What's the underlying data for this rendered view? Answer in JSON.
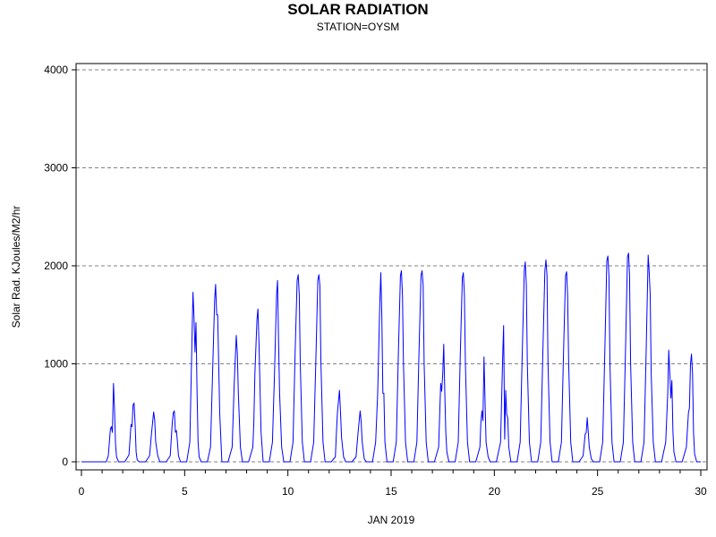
{
  "chart_data": {
    "type": "line",
    "title": "SOLAR RADIATION",
    "subtitle": "STATION=OYSM",
    "xlabel": "JAN 2019",
    "ylabel": "Solar Rad. KJoules/M2/hr",
    "xlim": [
      0,
      30
    ],
    "ylim": [
      0,
      4000
    ],
    "xticks": [
      0,
      5,
      10,
      15,
      20,
      25,
      30
    ],
    "yticks": [
      0,
      1000,
      2000,
      3000,
      4000
    ],
    "grid": "horizontal dashed",
    "colors": {
      "series": "#0000ff",
      "grid": "#808080",
      "axis": "#000000"
    },
    "series": [
      {
        "x": [
          0,
          1.2,
          1.3,
          1.4,
          1.45,
          1.5,
          1.55,
          1.6,
          1.65,
          1.7,
          1.8,
          2.1,
          2.3,
          2.4,
          2.45,
          2.5,
          2.55,
          2.6,
          2.65,
          2.7,
          2.8,
          3.1,
          3.3,
          3.4,
          3.5,
          3.55,
          3.6,
          3.7,
          3.8,
          4.1,
          4.3,
          4.4,
          4.45,
          4.5,
          4.55,
          4.6,
          4.65,
          4.7,
          4.8,
          5.1,
          5.25,
          5.35,
          5.4,
          5.45,
          5.5,
          5.55,
          5.6,
          5.65,
          5.7,
          5.8,
          6.1,
          6.25,
          6.35,
          6.45,
          6.5,
          6.55,
          6.6,
          6.7,
          6.8,
          7.1,
          7.3,
          7.4,
          7.5,
          7.55,
          7.6,
          7.7,
          7.8,
          8.1,
          8.3,
          8.35,
          8.4,
          8.5,
          8.55,
          8.6,
          8.7,
          8.8,
          9.1,
          9.25,
          9.35,
          9.45,
          9.5,
          9.55,
          9.6,
          9.7,
          9.8,
          10.1,
          10.25,
          10.35,
          10.45,
          10.5,
          10.55,
          10.6,
          10.7,
          10.8,
          11.1,
          11.25,
          11.35,
          11.45,
          11.5,
          11.55,
          11.6,
          11.7,
          11.8,
          12.1,
          12.3,
          12.35,
          12.4,
          12.5,
          12.55,
          12.6,
          12.7,
          12.8,
          13.1,
          13.3,
          13.4,
          13.5,
          13.55,
          13.6,
          13.7,
          13.8,
          14.1,
          14.25,
          14.35,
          14.45,
          14.5,
          14.55,
          14.6,
          14.65,
          14.7,
          14.8,
          15.1,
          15.25,
          15.35,
          15.45,
          15.5,
          15.55,
          15.6,
          15.7,
          15.8,
          16.1,
          16.25,
          16.35,
          16.45,
          16.5,
          16.55,
          16.6,
          16.7,
          16.8,
          17.1,
          17.3,
          17.4,
          17.45,
          17.5,
          17.55,
          17.6,
          17.65,
          17.7,
          17.8,
          18.1,
          18.25,
          18.35,
          18.45,
          18.5,
          18.55,
          18.6,
          18.7,
          18.8,
          19.1,
          19.3,
          19.35,
          19.4,
          19.45,
          19.5,
          19.55,
          19.6,
          19.7,
          19.8,
          20.1,
          20.3,
          20.4,
          20.45,
          20.5,
          20.55,
          20.6,
          20.65,
          20.7,
          20.8,
          21.1,
          21.25,
          21.35,
          21.45,
          21.5,
          21.55,
          21.6,
          21.7,
          21.8,
          22.1,
          22.25,
          22.35,
          22.45,
          22.5,
          22.55,
          22.6,
          22.7,
          22.8,
          23.1,
          23.25,
          23.35,
          23.45,
          23.5,
          23.55,
          23.6,
          23.7,
          23.8,
          24.1,
          24.3,
          24.4,
          24.45,
          24.5,
          24.55,
          24.6,
          24.7,
          24.8,
          25.1,
          25.25,
          25.35,
          25.45,
          25.5,
          25.55,
          25.6,
          25.7,
          25.8,
          26.1,
          26.25,
          26.35,
          26.45,
          26.5,
          26.55,
          26.6,
          26.7,
          26.8,
          27.1,
          27.25,
          27.35,
          27.45,
          27.5,
          27.55,
          27.6,
          27.7,
          27.8,
          28.1,
          28.3,
          28.4,
          28.45,
          28.5,
          28.55,
          28.6,
          28.65,
          28.7,
          28.8,
          29.1,
          29.3,
          29.4,
          29.45,
          29.5,
          29.55,
          29.6,
          29.65,
          29.7,
          29.8,
          30
        ],
        "values": [
          0,
          0,
          60,
          330,
          360,
          300,
          800,
          550,
          180,
          50,
          0,
          0,
          70,
          380,
          360,
          580,
          600,
          380,
          100,
          20,
          0,
          0,
          60,
          300,
          510,
          420,
          200,
          60,
          0,
          0,
          60,
          400,
          500,
          520,
          300,
          320,
          200,
          60,
          0,
          0,
          200,
          1200,
          1730,
          1500,
          1120,
          1420,
          700,
          200,
          50,
          0,
          0,
          150,
          900,
          1650,
          1810,
          1500,
          1500,
          500,
          0,
          0,
          150,
          800,
          1290,
          1100,
          700,
          150,
          0,
          0,
          150,
          400,
          900,
          1450,
          1560,
          1200,
          300,
          0,
          0,
          200,
          900,
          1700,
          1850,
          1200,
          700,
          150,
          0,
          0,
          200,
          1100,
          1850,
          1910,
          1700,
          1000,
          200,
          0,
          0,
          200,
          1000,
          1850,
          1910,
          1800,
          1000,
          200,
          0,
          0,
          50,
          300,
          500,
          730,
          500,
          250,
          50,
          0,
          0,
          50,
          300,
          520,
          400,
          200,
          30,
          0,
          0,
          200,
          700,
          1600,
          1930,
          1500,
          700,
          700,
          200,
          0,
          0,
          200,
          1100,
          1900,
          1950,
          1700,
          1000,
          200,
          0,
          0,
          200,
          1100,
          1900,
          1950,
          1800,
          1000,
          200,
          0,
          0,
          150,
          800,
          720,
          900,
          1200,
          700,
          300,
          100,
          0,
          0,
          200,
          1100,
          1880,
          1930,
          1700,
          1000,
          200,
          0,
          0,
          150,
          400,
          520,
          420,
          1070,
          600,
          200,
          50,
          0,
          0,
          200,
          1050,
          1390,
          230,
          730,
          480,
          450,
          150,
          0,
          0,
          200,
          1100,
          1950,
          2040,
          1800,
          1000,
          200,
          0,
          0,
          200,
          1100,
          1950,
          2060,
          1900,
          1000,
          200,
          0,
          0,
          200,
          1100,
          1900,
          1940,
          1700,
          1000,
          200,
          0,
          0,
          60,
          280,
          300,
          450,
          300,
          150,
          30,
          0,
          0,
          200,
          1100,
          2050,
          2100,
          1900,
          1000,
          200,
          0,
          0,
          200,
          1100,
          2090,
          2130,
          1900,
          1000,
          200,
          0,
          0,
          200,
          1100,
          2110,
          1950,
          1700,
          900,
          200,
          0,
          0,
          200,
          700,
          1140,
          900,
          650,
          830,
          300,
          100,
          0,
          0,
          150,
          500,
          550,
          1000,
          1100,
          900,
          300,
          80,
          0,
          0
        ]
      }
    ]
  }
}
